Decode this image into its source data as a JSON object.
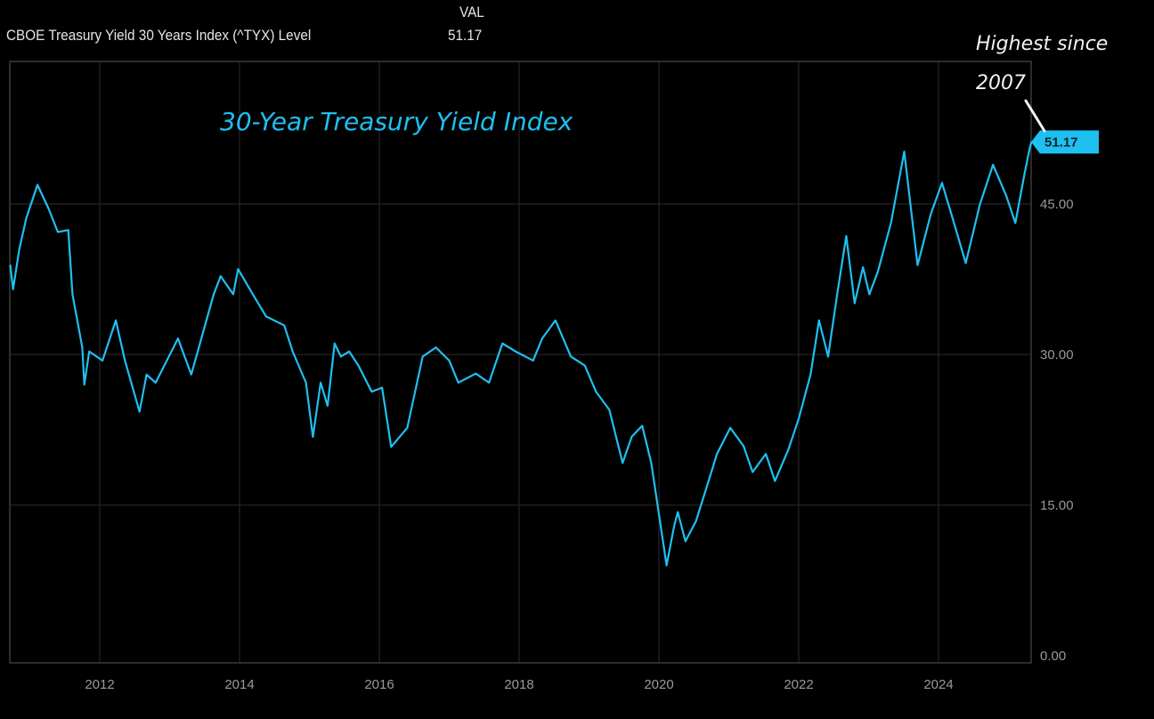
{
  "header": {
    "series_label": "CBOE Treasury Yield 30 Years Index (^TYX) Level",
    "column_header": "VAL",
    "current_value": "51.17"
  },
  "colors": {
    "background": "#000000",
    "line": "#1ec0f0",
    "grid": "#262626",
    "frame": "#3a3a3a",
    "tick_text": "#9a9a9a",
    "annotation": "#f2f2f2"
  },
  "chart_data": {
    "type": "line",
    "title": "30-Year Treasury Yield Index",
    "xlabel": "",
    "ylabel": "",
    "xlim": [
      2010.71,
      2025.33
    ],
    "ylim": [
      0,
      60
    ],
    "grid": true,
    "y_axis_side": "right",
    "x_ticks": [
      2012,
      2014,
      2016,
      2018,
      2020,
      2022,
      2024
    ],
    "x_tick_labels": [
      "2012",
      "2014",
      "2016",
      "2018",
      "2020",
      "2022",
      "2024"
    ],
    "y_ticks": [
      0,
      15,
      30,
      45
    ],
    "y_tick_labels": [
      "0.00",
      "15.00",
      "30.00",
      "45.00"
    ],
    "last_value_label": "51.17",
    "annotation": {
      "line1": "Highest since",
      "line2": "2007"
    },
    "series": [
      {
        "name": "CBOE Treasury Yield 30 Years Index (^TYX) Level",
        "x": [
          2010.72,
          2010.76,
          2010.85,
          2010.95,
          2011.11,
          2011.27,
          2011.4,
          2011.55,
          2011.61,
          2011.75,
          2011.78,
          2011.85,
          2012.04,
          2012.23,
          2012.36,
          2012.57,
          2012.67,
          2012.8,
          2013.12,
          2013.31,
          2013.63,
          2013.73,
          2013.91,
          2013.98,
          2014.19,
          2014.38,
          2014.64,
          2014.76,
          2014.95,
          2015.05,
          2015.16,
          2015.26,
          2015.36,
          2015.45,
          2015.57,
          2015.7,
          2015.89,
          2016.04,
          2016.17,
          2016.4,
          2016.62,
          2016.81,
          2017.0,
          2017.13,
          2017.38,
          2017.57,
          2017.76,
          2017.95,
          2018.2,
          2018.33,
          2018.52,
          2018.74,
          2018.94,
          2019.1,
          2019.29,
          2019.48,
          2019.61,
          2019.76,
          2019.89,
          2020.11,
          2020.22,
          2020.27,
          2020.38,
          2020.53,
          2020.67,
          2020.83,
          2021.02,
          2021.21,
          2021.34,
          2021.53,
          2021.66,
          2021.85,
          2022.0,
          2022.17,
          2022.29,
          2022.42,
          2022.55,
          2022.68,
          2022.8,
          2022.92,
          2023.01,
          2023.13,
          2023.32,
          2023.51,
          2023.7,
          2023.89,
          2024.05,
          2024.2,
          2024.39,
          2024.59,
          2024.78,
          2024.97,
          2025.1,
          2025.23,
          2025.31,
          2025.33
        ],
        "values": [
          38.9,
          36.5,
          40.5,
          43.6,
          46.9,
          44.5,
          42.2,
          42.4,
          36.0,
          30.7,
          27.0,
          30.3,
          29.4,
          33.4,
          29.4,
          24.3,
          28.0,
          27.2,
          31.6,
          28.0,
          36.0,
          37.8,
          36.0,
          38.5,
          36.0,
          33.8,
          32.9,
          30.3,
          27.2,
          21.8,
          27.2,
          24.9,
          31.1,
          29.8,
          30.3,
          28.9,
          26.3,
          26.7,
          20.8,
          22.7,
          29.8,
          30.7,
          29.4,
          27.2,
          28.1,
          27.2,
          31.1,
          30.3,
          29.4,
          31.6,
          33.4,
          29.8,
          28.9,
          26.3,
          24.5,
          19.2,
          21.8,
          22.9,
          19.2,
          9.0,
          13.0,
          14.3,
          11.4,
          13.4,
          16.5,
          20.1,
          22.7,
          20.9,
          18.3,
          20.1,
          17.4,
          20.5,
          23.6,
          28.0,
          33.4,
          29.8,
          36.0,
          41.8,
          35.1,
          38.7,
          36.0,
          38.2,
          43.1,
          50.2,
          38.9,
          44.0,
          47.1,
          43.6,
          39.1,
          44.9,
          48.9,
          45.8,
          43.1,
          48.0,
          50.7,
          51.17
        ]
      }
    ]
  }
}
